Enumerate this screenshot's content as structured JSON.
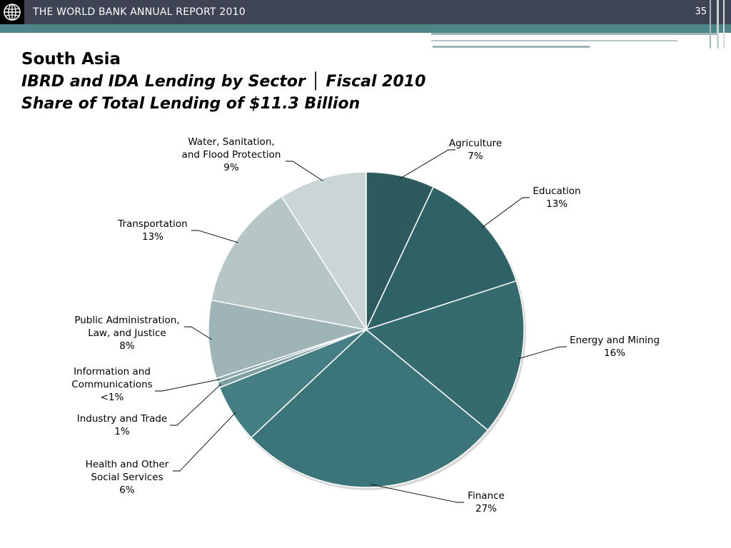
{
  "header": {
    "title": "THE WORLD BANK ANNUAL REPORT 2010",
    "page_number": "35",
    "logo_icon": "world-bank-globe-icon"
  },
  "slide": {
    "title": "South Asia",
    "subtitle_line1": "IBRD and IDA Lending by Sector │ Fiscal 2010",
    "subtitle_line2": "Share of Total Lending of $11.3 Billion"
  },
  "colors": {
    "header_bg": "#3f4455",
    "teal_band": "#4d8688"
  },
  "chart_data": {
    "type": "pie",
    "title": "",
    "unit": "%",
    "slices": [
      {
        "label_lines": [
          "Agriculture"
        ],
        "value_label": "7%",
        "value": 7,
        "color": "#2c5a5e"
      },
      {
        "label_lines": [
          "Education"
        ],
        "value_label": "13%",
        "value": 13,
        "color": "#2f6266"
      },
      {
        "label_lines": [
          "Energy and Mining"
        ],
        "value_label": "16%",
        "value": 16,
        "color": "#356b6f"
      },
      {
        "label_lines": [
          "Finance"
        ],
        "value_label": "27%",
        "value": 27,
        "color": "#3c7579"
      },
      {
        "label_lines": [
          "Health and Other",
          "Social Services"
        ],
        "value_label": "6%",
        "value": 6,
        "color": "#467f83"
      },
      {
        "label_lines": [
          "Industry and Trade"
        ],
        "value_label": "1%",
        "value": 0.6,
        "color": "#7fa0a3"
      },
      {
        "label_lines": [
          "Information and",
          "Communications"
        ],
        "value_label": "<1%",
        "value": 0.4,
        "color": "#8eaaad"
      },
      {
        "label_lines": [
          "Public Administration,",
          "Law, and Justice"
        ],
        "value_label": "8%",
        "value": 8,
        "color": "#9fb4b6"
      },
      {
        "label_lines": [
          "Transportation"
        ],
        "value_label": "13%",
        "value": 13,
        "color": "#b6c5c6"
      },
      {
        "label_lines": [
          "Water, Sanitation,",
          "and Flood Protection"
        ],
        "value_label": "9%",
        "value": 9,
        "color": "#cbd5d6"
      }
    ]
  }
}
